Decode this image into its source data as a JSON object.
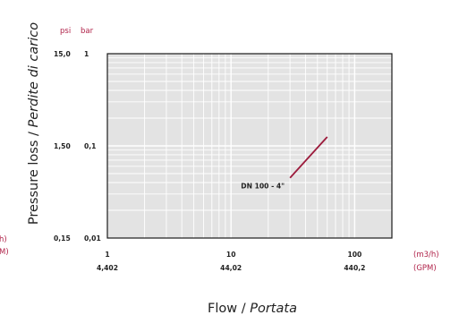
{
  "chart_data": {
    "type": "line",
    "x_scale": "log",
    "y_scale": "log",
    "xlim": [
      1,
      200
    ],
    "ylim": [
      0.01,
      1
    ],
    "grid": true,
    "x_ticks": [
      {
        "value": 1,
        "primary": "1",
        "secondary": "4,402"
      },
      {
        "value": 10,
        "primary": "10",
        "secondary": "44,02"
      },
      {
        "value": 100,
        "primary": "100",
        "secondary": "440,2"
      }
    ],
    "x_units": {
      "primary": "(m3/h)",
      "secondary": "(GPM)"
    },
    "y_ticks": [
      {
        "value": 1,
        "bar": "1",
        "psi": "15,0"
      },
      {
        "value": 0.1,
        "bar": "0,1",
        "psi": "1,50"
      },
      {
        "value": 0.01,
        "bar": "0,01",
        "psi": "0,15"
      }
    ],
    "y_units": {
      "psi": "psi",
      "bar": "bar"
    },
    "left_cutoff_units": [
      "h)",
      "M)"
    ],
    "xlabel": {
      "main": "Flow / ",
      "italic": "Portata"
    },
    "ylabel": {
      "main": "Pressure loss / ",
      "italic": "Perdite di carico"
    },
    "series": [
      {
        "name": "DN 100 - 4\"",
        "color": "#9c1b3c",
        "points": [
          {
            "x": 30,
            "y": 0.045
          },
          {
            "x": 60,
            "y": 0.125
          }
        ]
      }
    ]
  }
}
